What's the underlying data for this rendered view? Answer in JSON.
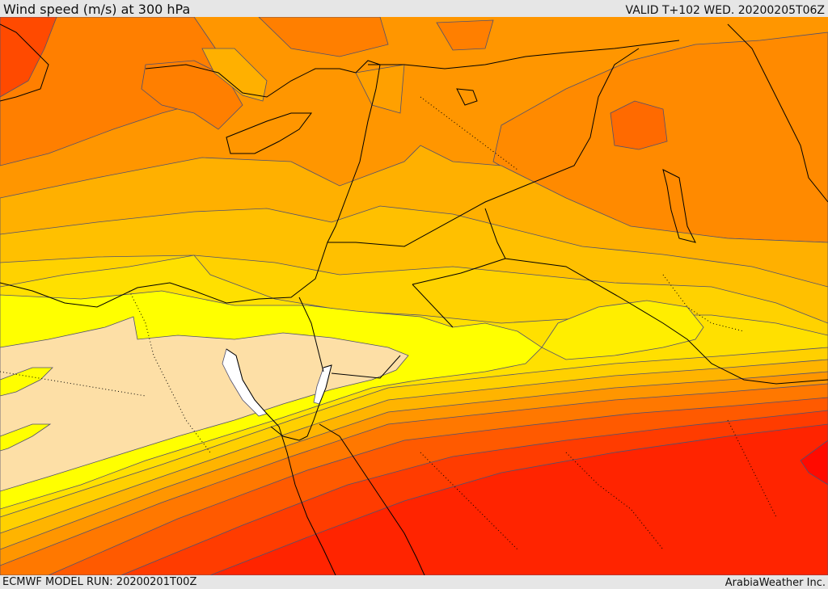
{
  "header": {
    "title": "Wind speed (m/s) at 300 hPa",
    "valid": "VALID T+102 WED. 20200205T06Z"
  },
  "footer": {
    "model_run": "ECMWF MODEL RUN: 20200201T00Z",
    "credit": "ArabiaWeather Inc."
  },
  "map": {
    "variable": "wind speed",
    "level": "300 hPa",
    "units": "m/s",
    "fill_colors": [
      "#ffffff",
      "#fddfa6",
      "#ffff00",
      "#ffdd00",
      "#ffc000",
      "#ffa000",
      "#ff8a00",
      "#ff6a00",
      "#ff4a00",
      "#ff2a00",
      "#ff1400"
    ],
    "contour_color": "#505070",
    "coastline_color": "#000000"
  }
}
